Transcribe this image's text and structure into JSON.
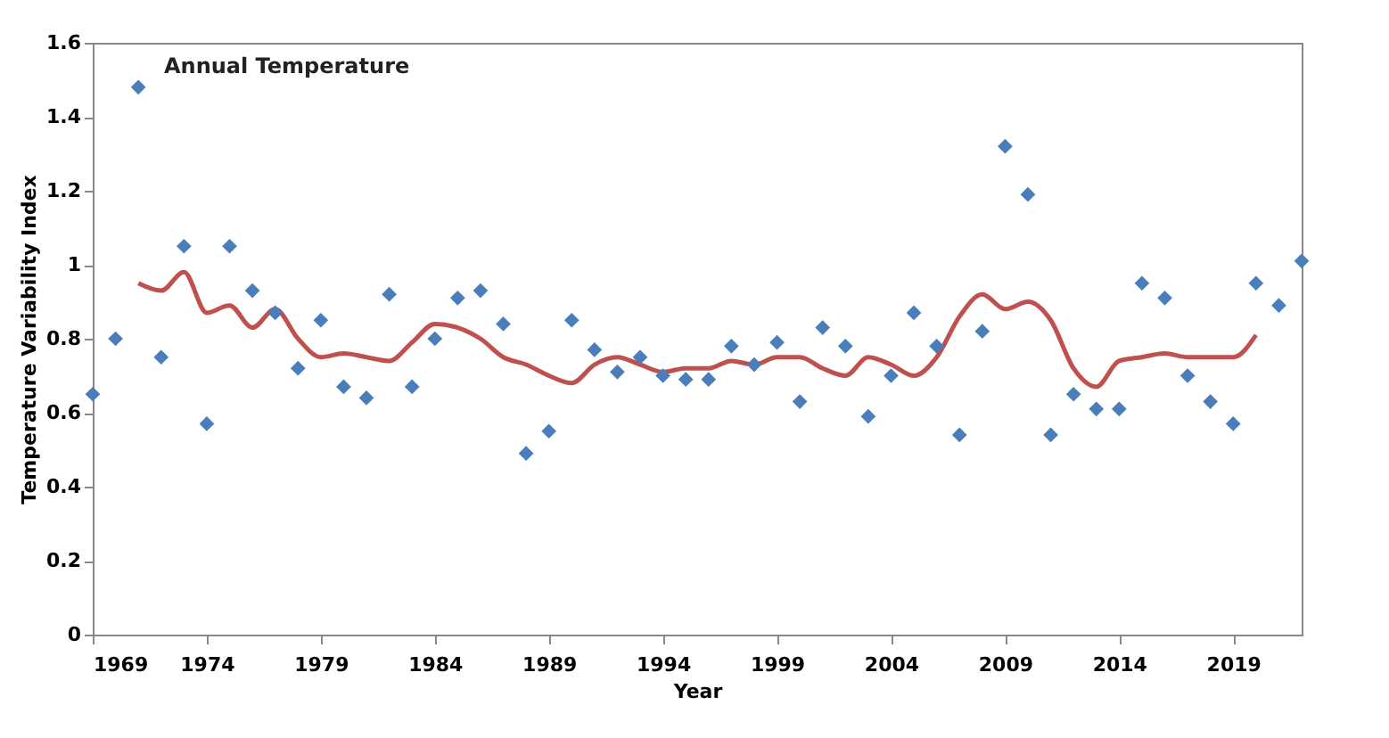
{
  "chart_data": {
    "type": "scatter",
    "xlabel": "Year",
    "ylabel": "Temperature Variability Index",
    "annotations": [
      "Annual Temperature"
    ],
    "xlim": [
      1969,
      2022
    ],
    "xticks": [
      1969,
      1974,
      1979,
      1984,
      1989,
      1994,
      1999,
      2004,
      2009,
      2014,
      2019
    ],
    "ylim": [
      0,
      1.6
    ],
    "yticks": [
      0,
      0.2,
      0.4,
      0.6,
      0.8,
      1,
      1.2,
      1.4,
      1.6
    ],
    "grid": false,
    "series": [
      {
        "marker": "diamond",
        "color": "#4a7ebb",
        "x": [
          1969,
          1970,
          1971,
          1972,
          1973,
          1974,
          1975,
          1976,
          1977,
          1978,
          1979,
          1980,
          1981,
          1982,
          1983,
          1984,
          1985,
          1986,
          1987,
          1988,
          1989,
          1990,
          1991,
          1992,
          1993,
          1994,
          1995,
          1996,
          1997,
          1998,
          1999,
          2000,
          2001,
          2002,
          2003,
          2004,
          2005,
          2006,
          2007,
          2008,
          2009,
          2010,
          2011,
          2012,
          2013,
          2014,
          2015,
          2016,
          2017,
          2018,
          2019,
          2020,
          2021,
          2022
        ],
        "values": [
          0.65,
          0.8,
          1.48,
          0.75,
          1.05,
          0.57,
          1.05,
          0.93,
          0.87,
          0.72,
          0.85,
          0.67,
          0.64,
          0.92,
          0.67,
          0.8,
          0.91,
          0.93,
          0.84,
          0.49,
          0.55,
          0.85,
          0.77,
          0.71,
          0.75,
          0.7,
          0.69,
          0.69,
          0.78,
          0.73,
          0.79,
          0.63,
          0.83,
          0.78,
          0.59,
          0.7,
          0.87,
          0.78,
          0.54,
          0.82,
          1.32,
          1.19,
          0.54,
          0.65,
          0.61,
          0.61,
          0.95,
          0.91,
          0.7,
          0.63,
          0.57,
          0.95,
          0.89,
          1.01
        ]
      },
      {
        "type": "line",
        "marker": "none",
        "line_style": "solid",
        "color": "#c0504d",
        "x": [
          1971,
          1972,
          1973,
          1974,
          1975,
          1976,
          1977,
          1978,
          1979,
          1980,
          1981,
          1982,
          1983,
          1984,
          1985,
          1986,
          1987,
          1988,
          1989,
          1990,
          1991,
          1992,
          1993,
          1994,
          1995,
          1996,
          1997,
          1998,
          1999,
          2000,
          2001,
          2002,
          2003,
          2004,
          2005,
          2006,
          2007,
          2008,
          2009,
          2010,
          2011,
          2012,
          2013,
          2014,
          2015,
          2016,
          2017,
          2018,
          2019,
          2020
        ],
        "values": [
          0.95,
          0.93,
          0.98,
          0.87,
          0.89,
          0.83,
          0.88,
          0.8,
          0.75,
          0.76,
          0.75,
          0.74,
          0.79,
          0.84,
          0.83,
          0.8,
          0.75,
          0.73,
          0.7,
          0.68,
          0.73,
          0.75,
          0.73,
          0.71,
          0.72,
          0.72,
          0.74,
          0.73,
          0.75,
          0.75,
          0.72,
          0.7,
          0.75,
          0.73,
          0.7,
          0.75,
          0.86,
          0.92,
          0.88,
          0.9,
          0.85,
          0.72,
          0.67,
          0.74,
          0.75,
          0.76,
          0.75,
          0.75,
          0.75,
          0.81
        ]
      }
    ]
  }
}
